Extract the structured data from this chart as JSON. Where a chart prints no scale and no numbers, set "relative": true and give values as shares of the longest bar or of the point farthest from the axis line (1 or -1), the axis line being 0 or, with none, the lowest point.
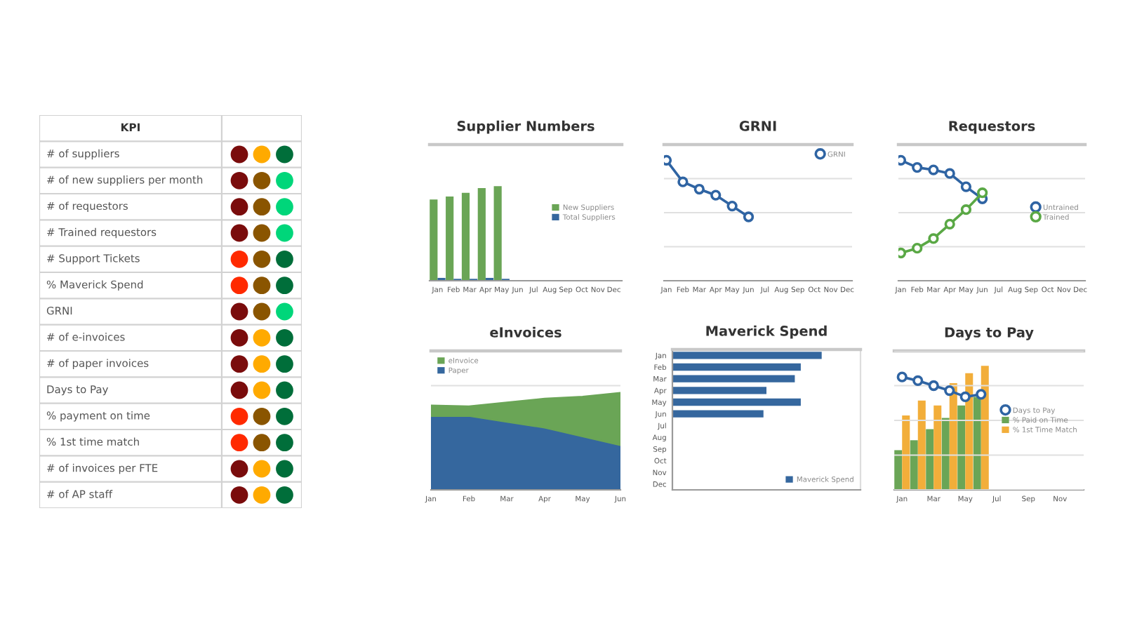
{
  "chart_data": [
    {
      "type": "other",
      "title": "KPI",
      "annotations": [
        "# of suppliers",
        "# of new suppliers per month",
        "# of requestors",
        "# Trained requestors",
        "# Support Tickets",
        "% Maverick Spend",
        "GRNI",
        "# of e-invoices",
        "# of paper invoices",
        "Days to Pay",
        "% payment on time",
        "% 1st time match",
        "# of invoices per FTE",
        "# of AP staff"
      ]
    },
    {
      "type": "bar",
      "title": "Supplier Numbers",
      "categories": [
        "Jan",
        "Feb",
        "Mar",
        "Apr",
        "May",
        "Jun",
        "Jul",
        "Aug",
        "Sep",
        "Oct",
        "Nov",
        "Dec"
      ],
      "relative": true,
      "series": [
        {
          "name": "New Suppliers",
          "color": "#6aa556",
          "values": [
            0.86,
            0.89,
            0.93,
            0.98,
            1.0,
            null,
            null,
            null,
            null,
            null,
            null,
            null
          ]
        },
        {
          "name": "Total Suppliers",
          "color": "#35679e",
          "values": [
            0.03,
            0.02,
            0.02,
            0.03,
            0.02,
            null,
            null,
            null,
            null,
            null,
            null,
            null
          ]
        }
      ],
      "legend": "right"
    },
    {
      "type": "line",
      "title": "GRNI",
      "categories": [
        "Jan",
        "Feb",
        "Mar",
        "Apr",
        "May",
        "Jun",
        "Jul",
        "Aug",
        "Sep",
        "Oct",
        "Nov",
        "Dec"
      ],
      "relative": true,
      "series": [
        {
          "name": "GRNI",
          "color": "#2f64a3",
          "values": [
            1.0,
            0.82,
            0.76,
            0.71,
            0.62,
            0.53,
            null,
            null,
            null,
            null,
            null,
            null
          ]
        }
      ],
      "marker": "circle",
      "legend": "top right",
      "grid": "y"
    },
    {
      "type": "line",
      "title": "Requestors",
      "categories": [
        "Jan",
        "Feb",
        "Mar",
        "Apr",
        "May",
        "Jun",
        "Jul",
        "Aug",
        "Sep",
        "Oct",
        "Nov",
        "Dec"
      ],
      "relative": true,
      "series": [
        {
          "name": "Untrained",
          "color": "#2f64a3",
          "values": [
            1.0,
            0.94,
            0.92,
            0.89,
            0.78,
            0.68,
            null,
            null,
            null,
            null,
            null,
            null
          ]
        },
        {
          "name": "Trained",
          "color": "#5aa845",
          "values": [
            0.23,
            0.27,
            0.35,
            0.47,
            0.59,
            0.73,
            null,
            null,
            null,
            null,
            null,
            null
          ]
        }
      ],
      "marker": "circle",
      "legend": "right",
      "grid": "y"
    },
    {
      "type": "area",
      "title": "eInvoices",
      "categories": [
        "Jan",
        "Feb",
        "Mar",
        "Apr",
        "May",
        "Jun"
      ],
      "relative": true,
      "stacked": true,
      "series": [
        {
          "name": "Paper",
          "color": "#35679e",
          "values": [
            0.76,
            0.76,
            0.7,
            0.64,
            0.55,
            0.46
          ]
        },
        {
          "name": "eInvoice",
          "color": "#6aa556",
          "values": [
            0.11,
            0.1,
            0.2,
            0.3,
            0.41,
            0.54
          ]
        }
      ],
      "legend": "top left",
      "grid": "y"
    },
    {
      "type": "bar",
      "orientation": "horizontal",
      "title": "Maverick Spend",
      "categories": [
        "Jan",
        "Feb",
        "Mar",
        "Apr",
        "May",
        "Jun",
        "Jul",
        "Aug",
        "Sep",
        "Oct",
        "Nov",
        "Dec"
      ],
      "relative": true,
      "series": [
        {
          "name": "Maverick Spend",
          "color": "#35679e",
          "values": [
            1.0,
            0.86,
            0.82,
            0.63,
            0.86,
            0.61,
            null,
            null,
            null,
            null,
            null,
            null
          ]
        }
      ],
      "legend": "bottom right"
    },
    {
      "type": "bar",
      "title": "Days to Pay",
      "categories": [
        "Jan",
        null,
        "Mar",
        null,
        "May",
        null,
        "Jul",
        null,
        "Sep",
        null,
        "Nov",
        null
      ],
      "relative": true,
      "series": [
        {
          "name": "Days to Pay",
          "type": "line",
          "color": "#2f64a3",
          "values": [
            0.91,
            0.88,
            0.84,
            0.8,
            0.75,
            0.77,
            null,
            null,
            null,
            null,
            null,
            null
          ]
        },
        {
          "name": "% Paid on Time",
          "color": "#6aa556",
          "values": [
            0.32,
            0.4,
            0.49,
            0.58,
            0.68,
            0.75,
            null,
            null,
            null,
            null,
            null,
            null
          ]
        },
        {
          "name": "% 1st Time Match",
          "color": "#f2ae3a",
          "values": [
            0.6,
            0.72,
            0.68,
            0.86,
            0.94,
            1.0,
            null,
            null,
            null,
            null,
            null,
            null
          ]
        }
      ],
      "marker": "circle",
      "legend": "right",
      "grid": "y"
    }
  ]
}
